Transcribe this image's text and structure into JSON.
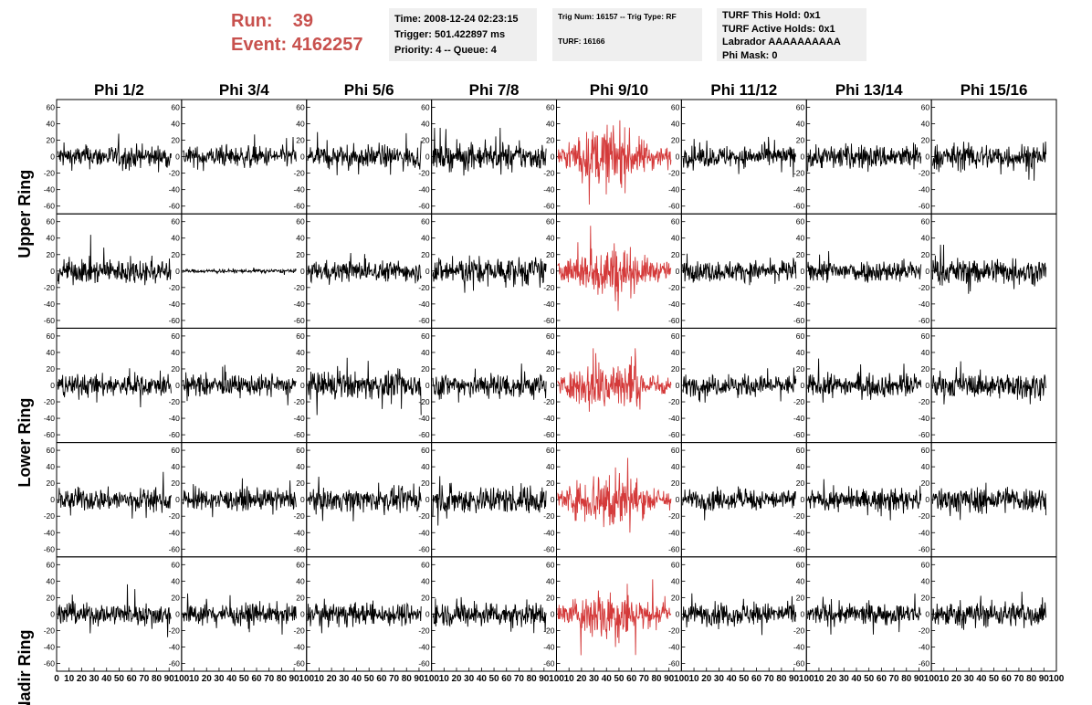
{
  "run_info": {
    "run_label": "Run:",
    "run_value": "39",
    "event_label": "Event:",
    "event_value": "4162257"
  },
  "info_box_1": {
    "time": "Time: 2008-12-24 02:23:15",
    "trigger": "Trigger: 501.422897 ms",
    "priority": "Priority: 4 -- Queue: 4"
  },
  "info_box_2": {
    "trig": "Trig Num: 16157 -- Trig Type: RF",
    "turf": "TURF: 16166"
  },
  "info_box_3": {
    "hold": "TURF This Hold: 0x1",
    "active": "TURF Active Holds: 0x1",
    "labrador": "Labrador AAAAAAAAAA",
    "phimask": "Phi Mask: 0"
  },
  "colors": {
    "trace": "#000000",
    "highlight": "#d43a3a",
    "info_text": "#c8514e",
    "box_bg": "#efefef"
  },
  "chart_data": {
    "type": "line",
    "title": "",
    "column_headers": [
      "Phi 1/2",
      "Phi 3/4",
      "Phi 5/6",
      "Phi 7/8",
      "Phi 9/10",
      "Phi 11/12",
      "Phi 13/14",
      "Phi 15/16"
    ],
    "row_labels": [
      "Upper Ring",
      "",
      "Lower Ring",
      "",
      "Nadir Ring"
    ],
    "xlim": [
      0,
      100
    ],
    "ylim": [
      -65,
      65
    ],
    "y_ticks": [
      -60,
      -40,
      -20,
      0,
      20,
      40,
      60
    ],
    "x_ticks": [
      0,
      10,
      20,
      30,
      40,
      50,
      60,
      70,
      80,
      90,
      100
    ],
    "highlight_column": 4,
    "panels": [
      [
        {
          "amp": 12,
          "peak": 28
        },
        {
          "amp": 11,
          "peak": 27
        },
        {
          "amp": 12,
          "peak": 30
        },
        {
          "amp": 14,
          "peak": 35
        },
        {
          "amp": 22,
          "peak": 60
        },
        {
          "amp": 11,
          "peak": 25
        },
        {
          "amp": 13,
          "peak": 30
        },
        {
          "amp": 14,
          "peak": 33
        }
      ],
      [
        {
          "amp": 13,
          "peak": 48
        },
        {
          "amp": 2,
          "peak": 5
        },
        {
          "amp": 11,
          "peak": 22
        },
        {
          "amp": 15,
          "peak": 42
        },
        {
          "amp": 20,
          "peak": 55
        },
        {
          "amp": 11,
          "peak": 25
        },
        {
          "amp": 12,
          "peak": 30
        },
        {
          "amp": 14,
          "peak": 32
        }
      ],
      [
        {
          "amp": 12,
          "peak": 30
        },
        {
          "amp": 11,
          "peak": 25
        },
        {
          "amp": 14,
          "peak": 36
        },
        {
          "amp": 14,
          "peak": 36
        },
        {
          "amp": 20,
          "peak": 45
        },
        {
          "amp": 11,
          "peak": 28
        },
        {
          "amp": 12,
          "peak": 33
        },
        {
          "amp": 13,
          "peak": 32
        }
      ],
      [
        {
          "amp": 12,
          "peak": 45
        },
        {
          "amp": 11,
          "peak": 26
        },
        {
          "amp": 12,
          "peak": 28
        },
        {
          "amp": 15,
          "peak": 50
        },
        {
          "amp": 22,
          "peak": 55
        },
        {
          "amp": 11,
          "peak": 25
        },
        {
          "amp": 11,
          "peak": 25
        },
        {
          "amp": 14,
          "peak": 32
        }
      ],
      [
        {
          "amp": 12,
          "peak": 40
        },
        {
          "amp": 11,
          "peak": 25
        },
        {
          "amp": 12,
          "peak": 50
        },
        {
          "amp": 13,
          "peak": 50
        },
        {
          "amp": 20,
          "peak": 50
        },
        {
          "amp": 12,
          "peak": 30
        },
        {
          "amp": 11,
          "peak": 25
        },
        {
          "amp": 14,
          "peak": 55
        }
      ]
    ]
  }
}
